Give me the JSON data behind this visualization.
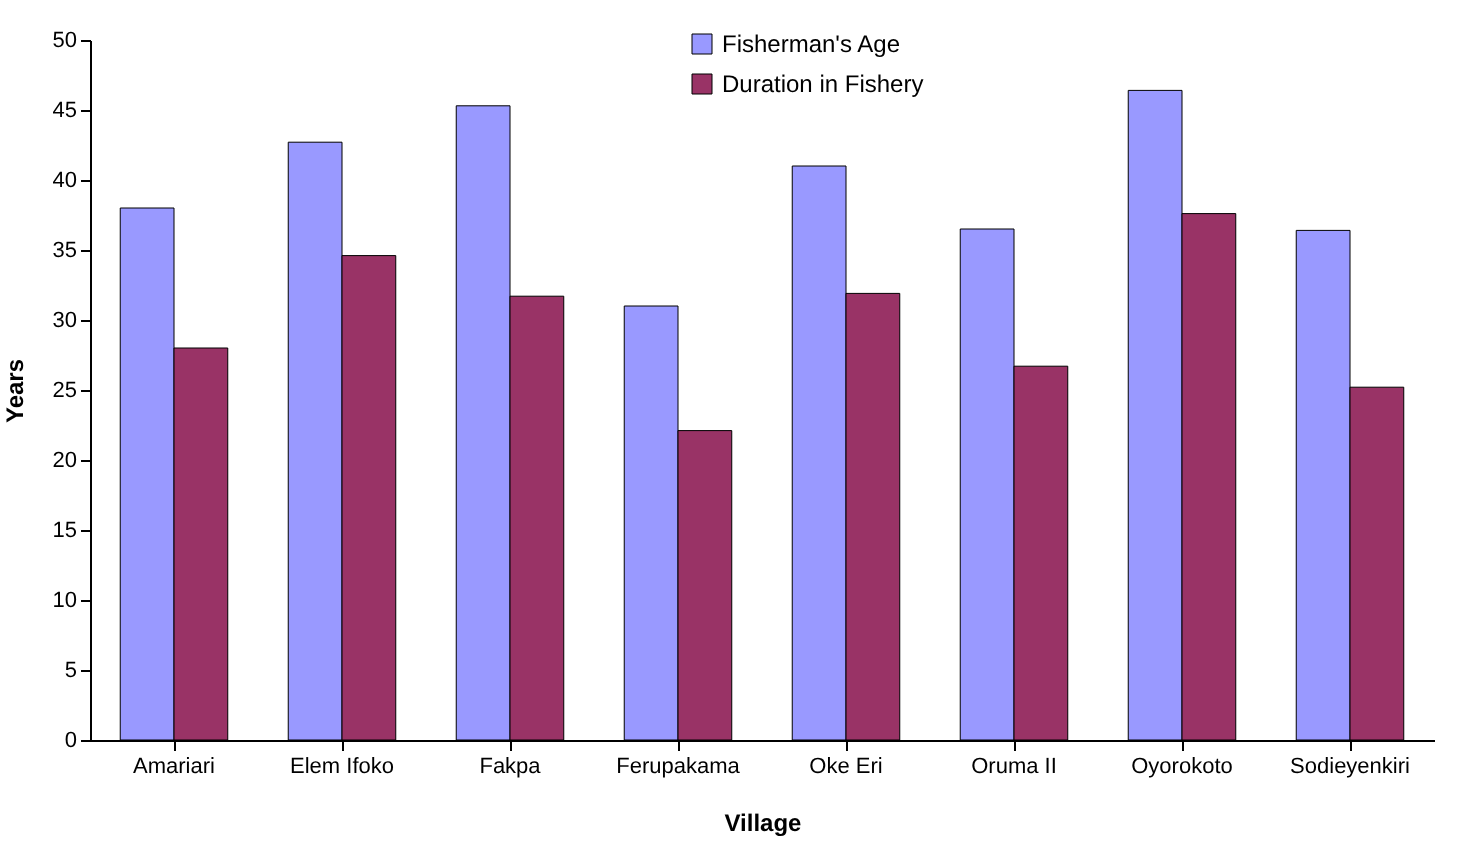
{
  "chart_data": {
    "type": "bar",
    "xlabel": "Village",
    "ylabel": "Years",
    "categories": [
      "Amariari",
      "Elem Ifoko",
      "Fakpa",
      "Ferupakama",
      "Oke Eri",
      "Oruma II",
      "Oyorokoto",
      "Sodieyenkiri"
    ],
    "series": [
      {
        "name": "Fisherman's Age",
        "color": "#9999ff",
        "values": [
          38,
          42.7,
          45.3,
          31,
          41,
          36.5,
          46.4,
          36.4
        ]
      },
      {
        "name": "Duration in Fishery",
        "color": "#993366",
        "values": [
          28,
          34.6,
          31.7,
          22.1,
          31.9,
          26.7,
          37.6,
          25.2
        ]
      }
    ],
    "ylim": [
      0,
      50
    ],
    "yticks": [
      0,
      5,
      10,
      15,
      20,
      25,
      30,
      35,
      40,
      45,
      50
    ],
    "grid": false,
    "legend": "top"
  }
}
